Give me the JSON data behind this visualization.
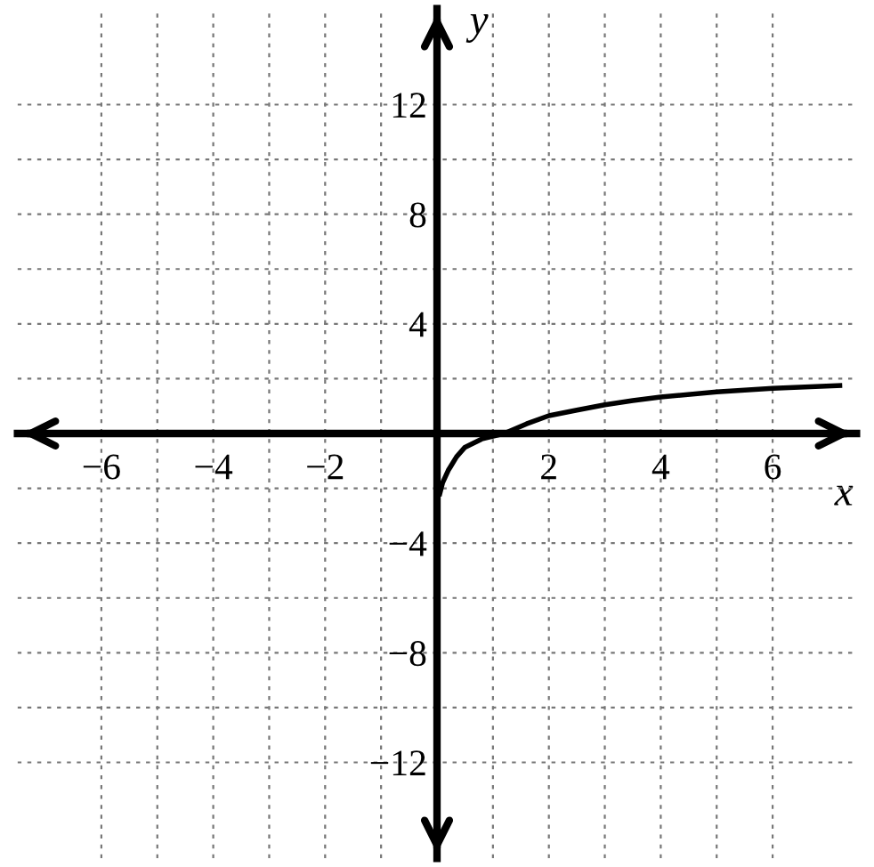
{
  "chart_data": {
    "type": "line",
    "xlabel": "x",
    "ylabel": "y",
    "xlim": [
      -7.5,
      7.5
    ],
    "ylim": [
      -15.5,
      15.5
    ],
    "xticks": [
      -6,
      {
        "value": -5,
        "label": null
      },
      -4,
      {
        "value": -3,
        "label": null
      },
      -2,
      {
        "value": -1,
        "label": null
      },
      {
        "value": 1,
        "label": null
      },
      2,
      {
        "value": 3,
        "label": null
      },
      4,
      {
        "value": 5,
        "label": null
      },
      6
    ],
    "yticks": [
      -12,
      {
        "value": -10,
        "label": null
      },
      -8,
      {
        "value": -6,
        "label": null
      },
      -4,
      {
        "value": -2,
        "label": null
      },
      {
        "value": 2,
        "label": null
      },
      4,
      {
        "value": 6,
        "label": null
      },
      8,
      {
        "value": 10,
        "label": null
      },
      12
    ],
    "grid": true,
    "line_style": "solid",
    "marker": "none",
    "series": [
      {
        "color": "#000000",
        "x": [
          0.05,
          0.1,
          0.2,
          0.35,
          0.5,
          0.8,
          1.2,
          1.6,
          2,
          2.5,
          3,
          3.5,
          4,
          5,
          6,
          7.2
        ],
        "values": [
          -2.2,
          -1.8,
          -1.35,
          -0.85,
          -0.5,
          -0.2,
          0,
          0.35,
          0.65,
          0.85,
          1.05,
          1.2,
          1.33,
          1.52,
          1.65,
          1.75
        ]
      }
    ]
  }
}
